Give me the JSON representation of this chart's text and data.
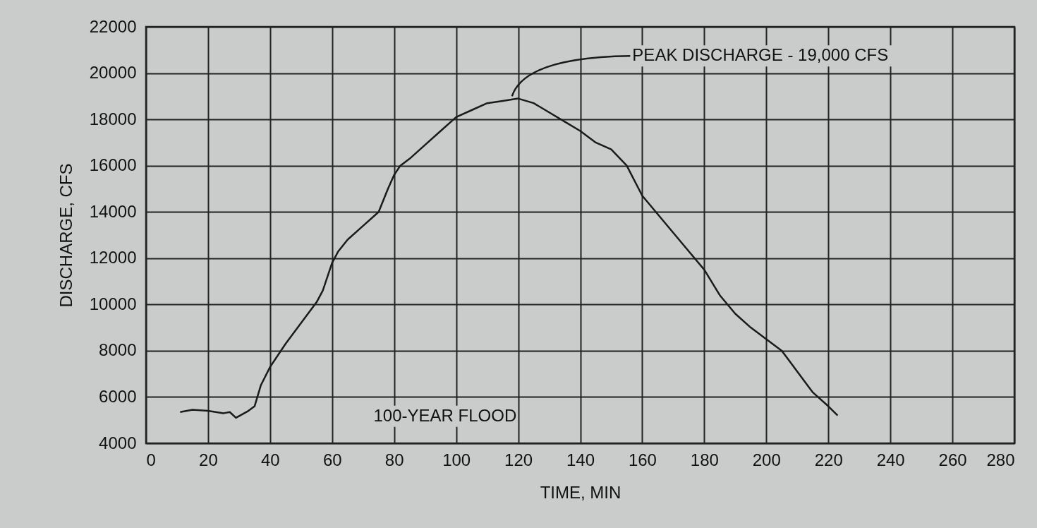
{
  "chart_data": {
    "type": "line",
    "xlabel": "TIME, MIN",
    "ylabel": "DISCHARGE, CFS",
    "x": [
      11,
      15,
      20,
      25,
      27,
      29,
      33,
      35,
      37,
      40,
      45,
      50,
      55,
      57,
      60,
      62,
      65,
      70,
      75,
      78,
      80,
      82,
      85,
      90,
      95,
      100,
      105,
      110,
      115,
      120,
      125,
      130,
      135,
      140,
      145,
      150,
      155,
      160,
      165,
      170,
      175,
      180,
      185,
      190,
      195,
      200,
      205,
      210,
      215,
      220,
      223
    ],
    "series": [
      {
        "color": "#1a1a1a",
        "values": [
          5350,
          5450,
          5400,
          5300,
          5350,
          5100,
          5400,
          5600,
          6500,
          7300,
          8300,
          9200,
          10100,
          10600,
          11800,
          12300,
          12800,
          13400,
          14000,
          15000,
          15600,
          16000,
          16300,
          16900,
          17500,
          18100,
          18400,
          18700,
          18800,
          18900,
          18700,
          18300,
          17900,
          17500,
          17000,
          16700,
          16000,
          14700,
          13900,
          13100,
          12300,
          11500,
          10400,
          9600,
          9000,
          8500,
          8000,
          7100,
          6200,
          5600,
          5200
        ]
      }
    ],
    "xlim": [
      0,
      280
    ],
    "xticks": [
      0,
      20,
      40,
      60,
      80,
      100,
      120,
      140,
      160,
      180,
      200,
      220,
      240,
      260,
      280
    ],
    "ylim": [
      4000,
      22000
    ],
    "yticks": [
      4000,
      6000,
      8000,
      10000,
      12000,
      14000,
      16000,
      18000,
      20000,
      22000
    ],
    "grid": true,
    "line_style": "solid",
    "marker": "none",
    "annotations": [
      {
        "text": "PEAK DISCHARGE - 19,000 CFS",
        "x": 118,
        "y": 19000
      },
      "100-YEAR FLOOD"
    ]
  }
}
